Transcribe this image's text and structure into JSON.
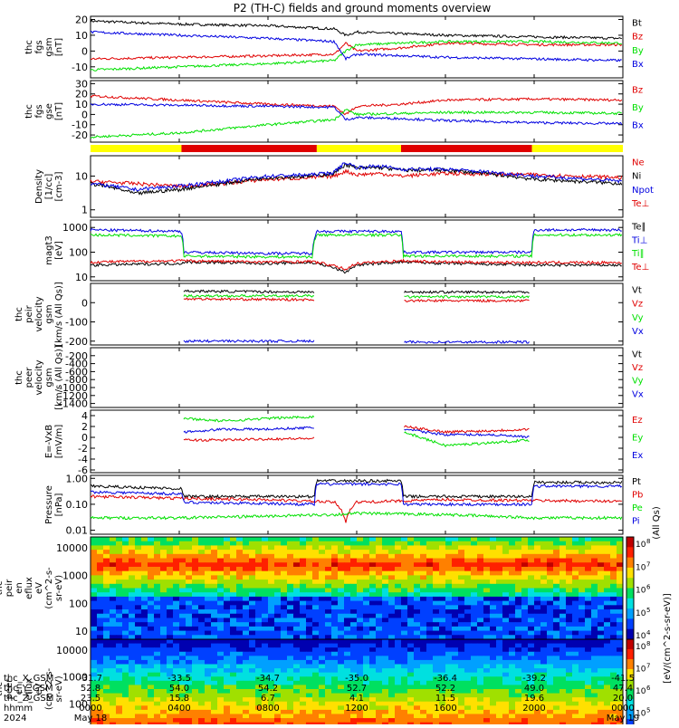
{
  "title": "P2 (TH-C) fields and ground moments overview",
  "colors": {
    "black": "#000000",
    "red": "#e00000",
    "green": "#00e000",
    "blue": "#0000e0",
    "yellow": "#ffff00",
    "barred": "#e00000"
  },
  "chart_data": [
    {
      "type": "line",
      "panel": "fgs-gsm",
      "ylabel": [
        "thc",
        "fgs",
        "gsm",
        "[nT]"
      ],
      "ylim": [
        -17,
        22
      ],
      "yticks": [
        20,
        10,
        0,
        -10
      ],
      "series": [
        {
          "name": "Bt",
          "color": "black",
          "x": [
            0,
            4,
            8,
            11,
            11.5,
            12,
            14,
            16,
            20,
            24
          ],
          "values": [
            19,
            17,
            16,
            14,
            10,
            12,
            11,
            10,
            9,
            8
          ]
        },
        {
          "name": "Bz",
          "color": "red",
          "x": [
            0,
            4,
            8,
            11,
            11.5,
            12,
            14,
            16,
            20,
            24
          ],
          "values": [
            -5,
            -4,
            -3,
            -2,
            5,
            0,
            2,
            5,
            4,
            4
          ]
        },
        {
          "name": "By",
          "color": "green",
          "x": [
            0,
            4,
            8,
            11,
            11.5,
            12,
            14,
            16,
            20,
            24
          ],
          "values": [
            -12,
            -10,
            -8,
            -6,
            0,
            4,
            5,
            6,
            6,
            5
          ]
        },
        {
          "name": "Bx",
          "color": "blue",
          "x": [
            0,
            4,
            8,
            11,
            11.5,
            12,
            14,
            16,
            20,
            24
          ],
          "values": [
            12,
            10,
            8,
            6,
            -5,
            -2,
            -3,
            -4,
            -5,
            -6
          ]
        }
      ]
    },
    {
      "type": "line",
      "panel": "fgs-gse",
      "ylabel": [
        "thc",
        "fgs",
        "gse",
        "[nT]"
      ],
      "ylim": [
        -27,
        33
      ],
      "yticks": [
        30,
        20,
        10,
        0,
        -10,
        -20
      ],
      "series": [
        {
          "name": "Bz",
          "color": "red",
          "x": [
            0,
            4,
            8,
            11,
            11.5,
            12,
            14,
            16,
            20,
            24
          ],
          "values": [
            18,
            14,
            10,
            8,
            0,
            8,
            10,
            14,
            15,
            14
          ]
        },
        {
          "name": "By",
          "color": "green",
          "x": [
            0,
            4,
            8,
            11,
            11.5,
            12,
            14,
            16,
            20,
            24
          ],
          "values": [
            -22,
            -18,
            -10,
            -5,
            5,
            0,
            1,
            2,
            2,
            1
          ]
        },
        {
          "name": "Bx",
          "color": "blue",
          "x": [
            0,
            4,
            8,
            11,
            11.5,
            12,
            14,
            16,
            20,
            24
          ],
          "values": [
            10,
            9,
            8,
            7,
            -5,
            -3,
            -4,
            -6,
            -8,
            -9
          ]
        }
      ]
    },
    {
      "type": "bar",
      "panel": "mode-bar",
      "segments": [
        {
          "x": [
            0,
            4.1
          ],
          "color": "yellow"
        },
        {
          "x": [
            4.1,
            10.2
          ],
          "color": "barred"
        },
        {
          "x": [
            10.2,
            14.0
          ],
          "color": "yellow"
        },
        {
          "x": [
            14.0,
            19.9
          ],
          "color": "barred"
        },
        {
          "x": [
            19.9,
            24
          ],
          "color": "yellow"
        }
      ]
    },
    {
      "type": "line",
      "panel": "density",
      "scale": "log",
      "ylabel": [
        "Density",
        "[1/cc]",
        "[cm-3]"
      ],
      "ylim": [
        0.6,
        40
      ],
      "ytick_labels": [
        "10",
        "1"
      ],
      "ytick_values": [
        10,
        1
      ],
      "series": [
        {
          "name": "Ne",
          "color": "red",
          "x": [
            0,
            2,
            4,
            6,
            8,
            10,
            11,
            11.5,
            12,
            13,
            14,
            16,
            20,
            24
          ],
          "values": [
            7,
            6,
            5,
            6,
            8,
            9,
            10,
            14,
            11,
            12,
            10,
            12,
            11,
            9
          ]
        },
        {
          "name": "Ni",
          "color": "black",
          "x": [
            0,
            2,
            4,
            6,
            8,
            10,
            11,
            11.5,
            12,
            13,
            14,
            16,
            20,
            24
          ],
          "values": [
            6,
            3,
            4,
            6,
            9,
            10,
            12,
            22,
            17,
            18,
            15,
            15,
            8,
            6
          ]
        },
        {
          "name": "Npot",
          "color": "blue",
          "x": [
            0,
            2,
            4,
            6,
            8,
            10,
            11,
            11.5,
            12,
            13,
            14,
            16,
            20,
            24
          ],
          "values": [
            6,
            4,
            5,
            7,
            10,
            11,
            13,
            25,
            18,
            20,
            16,
            16,
            10,
            7
          ]
        }
      ],
      "extra_legend": [
        {
          "name": "Te⊥",
          "color": "red"
        }
      ]
    },
    {
      "type": "line",
      "panel": "temperature",
      "scale": "log",
      "ylabel": [
        "magt3",
        "[eV]"
      ],
      "ylim": [
        7,
        2000
      ],
      "ytick_labels": [
        "1000",
        "100",
        "10"
      ],
      "ytick_values": [
        1000,
        100,
        10
      ],
      "series": [
        {
          "name": "Te∥",
          "color": "black",
          "x": [
            0,
            4.1,
            4.2,
            8,
            10,
            11.5,
            12,
            14,
            16,
            20,
            24
          ],
          "values": [
            30,
            35,
            40,
            35,
            38,
            15,
            30,
            40,
            35,
            30,
            30
          ]
        },
        {
          "name": "Ti⊥",
          "color": "blue",
          "x": [
            0,
            4.1,
            4.2,
            8,
            10,
            10.2,
            14,
            14.1,
            19.9,
            20,
            24
          ],
          "values": [
            800,
            700,
            100,
            90,
            90,
            700,
            700,
            100,
            100,
            800,
            800
          ]
        },
        {
          "name": "Ti∥",
          "color": "green",
          "x": [
            0,
            4.1,
            4.2,
            8,
            10,
            10.2,
            14,
            14.1,
            19.9,
            20,
            24
          ],
          "values": [
            500,
            450,
            70,
            65,
            65,
            500,
            500,
            70,
            70,
            500,
            500
          ]
        },
        {
          "name": "Te⊥",
          "color": "red",
          "x": [
            0,
            4.1,
            4.2,
            8,
            10,
            11.5,
            12,
            14,
            16,
            20,
            24
          ],
          "values": [
            40,
            45,
            45,
            40,
            42,
            20,
            35,
            45,
            40,
            38,
            38
          ]
        }
      ]
    },
    {
      "type": "line",
      "panel": "peir-velocity",
      "ylabel": [
        "thc",
        "peir",
        "velocity",
        "gsm",
        "[km/s (All Qs)]"
      ],
      "ylim": [
        -220,
        100
      ],
      "yticks": [
        0,
        -100,
        -200
      ],
      "ytick_labels": [
        "0",
        "-100",
        "-200"
      ],
      "series": [
        {
          "name": "Vt",
          "color": "black",
          "x": [
            4.2,
            10.1,
            null,
            14.1,
            19.8
          ],
          "values": [
            60,
            55,
            null,
            55,
            55
          ]
        },
        {
          "name": "Vz",
          "color": "red",
          "x": [
            4.2,
            10.1,
            null,
            14.1,
            19.8
          ],
          "values": [
            20,
            15,
            null,
            10,
            10
          ]
        },
        {
          "name": "Vy",
          "color": "green",
          "x": [
            4.2,
            10.1,
            null,
            14.1,
            19.8
          ],
          "values": [
            35,
            35,
            null,
            30,
            30
          ]
        },
        {
          "name": "Vx",
          "color": "blue",
          "x": [
            4.2,
            10.1,
            null,
            14.1,
            19.8
          ],
          "values": [
            -200,
            -200,
            null,
            -205,
            -205
          ]
        }
      ],
      "ytick_display": [
        "0",
        "0",
        "0"
      ]
    },
    {
      "type": "line",
      "panel": "peer-velocity",
      "ylabel": [
        "thc",
        "peer",
        "velocity",
        "gsm",
        "[km/s (All Qs)]"
      ],
      "ylim": [
        -1500,
        0
      ],
      "yticks": [
        -200,
        -400,
        -600,
        -800,
        -1000,
        -1200,
        -1400
      ],
      "series": [
        {
          "name": "Vt",
          "color": "black",
          "x": [],
          "values": []
        },
        {
          "name": "Vz",
          "color": "red",
          "x": [],
          "values": []
        },
        {
          "name": "Vy",
          "color": "green",
          "x": [],
          "values": []
        },
        {
          "name": "Vx",
          "color": "blue",
          "x": [],
          "values": []
        }
      ]
    },
    {
      "type": "line",
      "panel": "efield",
      "ylabel": [
        "E=-VxB",
        "[mV/m]"
      ],
      "ylim": [
        -6.5,
        5
      ],
      "yticks": [
        4,
        2,
        0,
        -2,
        -4,
        -6
      ],
      "series": [
        {
          "name": "Ez",
          "color": "red",
          "x": [
            4.2,
            6,
            8,
            10.1,
            null,
            14.1,
            16,
            18,
            19.8
          ],
          "values": [
            -0.5,
            -0.5,
            -0.3,
            -0.2,
            null,
            2,
            1,
            1.2,
            1.5
          ]
        },
        {
          "name": "Ey",
          "color": "green",
          "x": [
            4.2,
            6,
            8,
            10.1,
            null,
            14.1,
            16,
            18,
            19.8
          ],
          "values": [
            3.5,
            3,
            3.5,
            3.8,
            null,
            1,
            -1.5,
            -1,
            -0.5
          ]
        },
        {
          "name": "Ex",
          "color": "blue",
          "x": [
            4.2,
            6,
            8,
            10.1,
            null,
            14.1,
            16,
            18,
            19.8
          ],
          "values": [
            1,
            1.5,
            1.5,
            1.8,
            null,
            1.5,
            0.5,
            0.5,
            0
          ]
        }
      ]
    },
    {
      "type": "line",
      "panel": "pressure",
      "scale": "log",
      "ylabel": [
        "Pressure",
        "[nPa]"
      ],
      "ylim": [
        0.007,
        1.3
      ],
      "ytick_labels": [
        "1.00",
        "0.10",
        "0.01"
      ],
      "ytick_values": [
        1,
        0.1,
        0.01
      ],
      "series": [
        {
          "name": "Pt",
          "color": "black",
          "x": [
            0,
            4.1,
            4.2,
            10.1,
            10.2,
            14.0,
            14.1,
            19.9,
            20,
            24
          ],
          "values": [
            0.5,
            0.4,
            0.2,
            0.2,
            0.8,
            0.8,
            0.2,
            0.2,
            0.7,
            0.7
          ]
        },
        {
          "name": "Pb",
          "color": "red",
          "x": [
            0,
            4,
            8,
            11,
            11.5,
            12,
            16,
            20,
            24
          ],
          "values": [
            0.2,
            0.17,
            0.15,
            0.12,
            0.02,
            0.12,
            0.15,
            0.14,
            0.13
          ]
        },
        {
          "name": "Pe",
          "color": "green",
          "x": [
            0,
            4,
            8,
            11,
            12,
            16,
            20,
            24
          ],
          "values": [
            0.03,
            0.03,
            0.035,
            0.04,
            0.045,
            0.04,
            0.03,
            0.03
          ]
        },
        {
          "name": "Pi",
          "color": "blue",
          "x": [
            0,
            4.1,
            4.2,
            10.1,
            10.2,
            14.0,
            14.1,
            19.9,
            20,
            24
          ],
          "values": [
            0.3,
            0.25,
            0.12,
            0.1,
            0.6,
            0.6,
            0.1,
            0.1,
            0.5,
            0.5
          ]
        }
      ],
      "side_label": "(All Qs)"
    },
    {
      "type": "heatmap",
      "panel": "peir-spectrogram",
      "ylabel": [
        "thc",
        "peir",
        "en",
        "eflux",
        "eV",
        "(cm^2-s-",
        "sr-eV)"
      ],
      "scale": "log",
      "ylim": [
        5,
        25000
      ],
      "ytick_labels": [
        "10000",
        "1000",
        "100",
        "10"
      ],
      "ytick_values": [
        10000,
        1000,
        100,
        10
      ]
    },
    {
      "type": "heatmap",
      "panel": "peer-spectrogram",
      "ylabel": [
        "thc",
        "peer",
        "en",
        "eflux",
        "eV",
        "(cm^2-s-",
        "sr-eV)"
      ],
      "scale": "log",
      "ylim": [
        5,
        25000
      ],
      "ytick_labels": [
        "10000",
        "1000",
        "100",
        "10"
      ],
      "ytick_values": [
        10000,
        1000,
        100,
        10
      ]
    }
  ],
  "colorbar": {
    "label": "[eV/(cm^2-s-sr-eV)]",
    "top": {
      "tick_labels": [
        "10",
        "10",
        "10",
        "10",
        "10"
      ],
      "exponents": [
        "8",
        "7",
        "6",
        "5",
        "4"
      ]
    },
    "bottom": {
      "tick_labels": [
        "10",
        "10",
        "10",
        "10",
        "10"
      ],
      "exponents": [
        "8",
        "7",
        "6",
        "5",
        "4"
      ]
    }
  },
  "time_axis": {
    "xlim": [
      0,
      24
    ],
    "ticks": [
      0,
      4,
      8,
      12,
      16,
      20,
      24
    ],
    "rows": [
      {
        "label": "thc_X_GSM",
        "values": [
          "-31.7",
          "-33.5",
          "-34.7",
          "-35.0",
          "-36.4",
          "-39.2",
          "-41.5"
        ]
      },
      {
        "label": "thc_Y_GSM",
        "values": [
          "52.8",
          "54.0",
          "54.2",
          "52.7",
          "52.2",
          "49.0",
          "47.4"
        ]
      },
      {
        "label": "thc_Z_GSM",
        "values": [
          "23.5",
          "15.8",
          "6.7",
          "4.1",
          "11.5",
          "19.6",
          "20.0"
        ]
      },
      {
        "label": "hhmm",
        "values": [
          "0000",
          "0400",
          "0800",
          "1200",
          "1600",
          "2000",
          "0000"
        ]
      },
      {
        "label": "2024",
        "values": [
          "May 18",
          "",
          "",
          "",
          "",
          "",
          "May 19"
        ]
      }
    ]
  }
}
